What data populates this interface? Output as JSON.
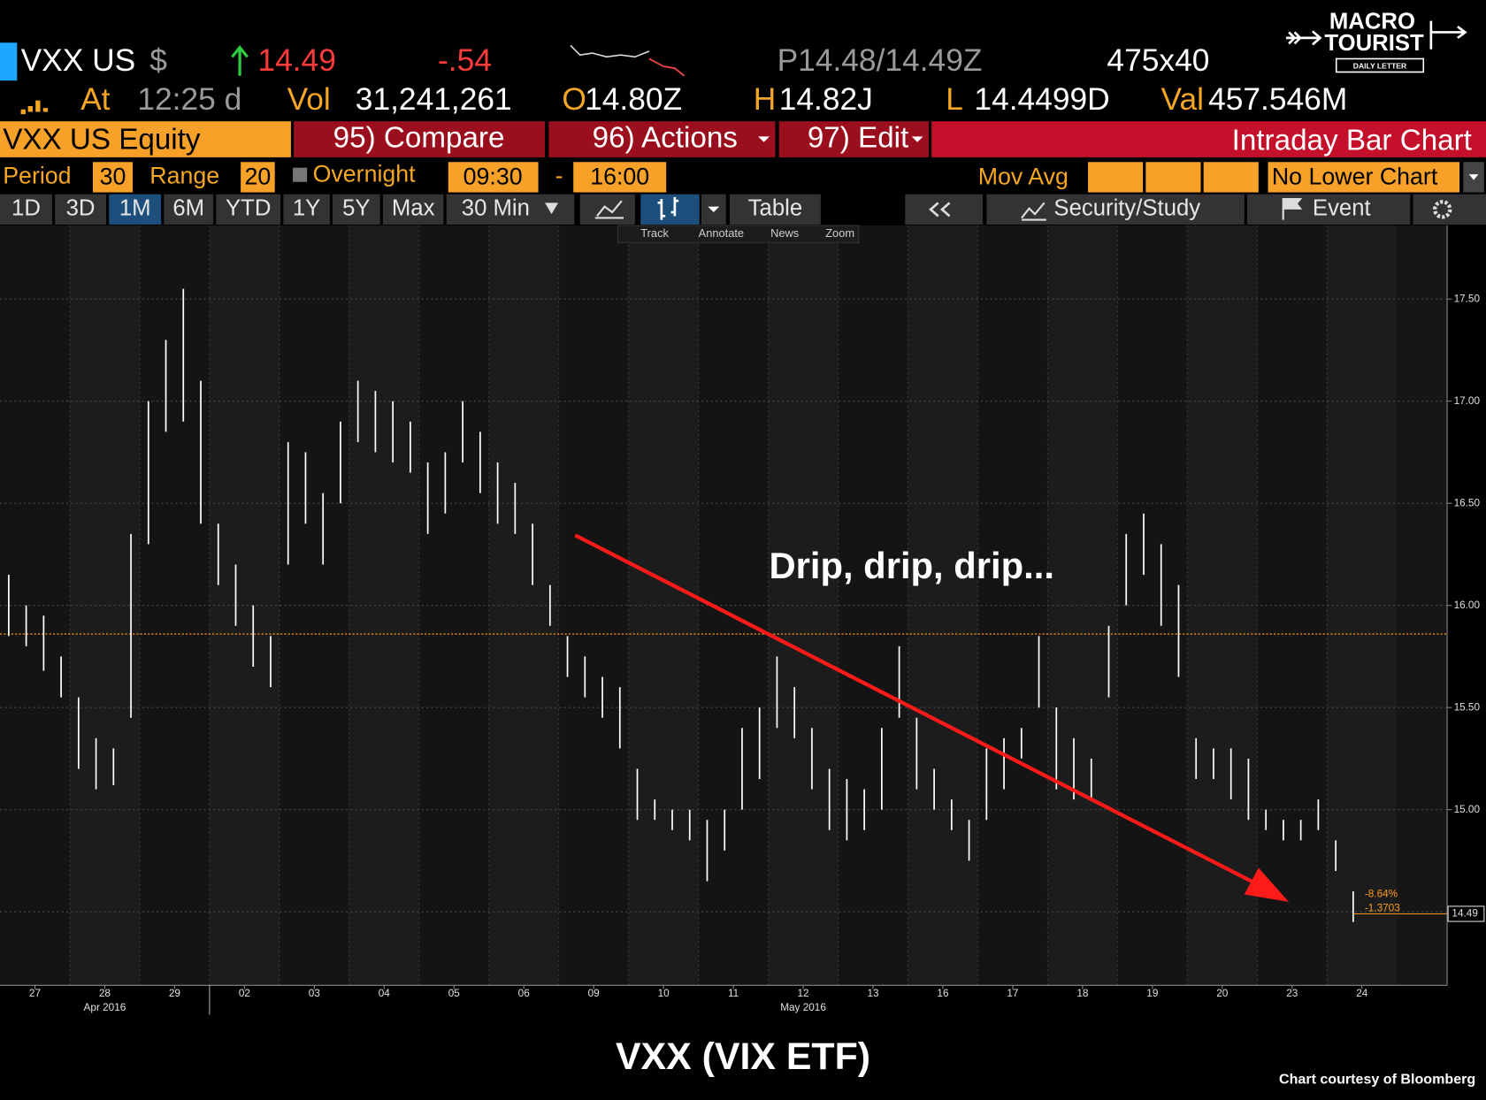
{
  "header": {
    "ticker": "VXX US",
    "currency": "$",
    "last": "14.49",
    "change": "-.54",
    "bid_ask": "P14.48/14.49Z",
    "size": "475x40",
    "at_label": "At",
    "time": "12:25 d",
    "vol_label": "Vol",
    "volume": "31,241,261",
    "open_label": "O",
    "open": "14.80Z",
    "high_label": "H",
    "high": "14.82J",
    "low_label": "L",
    "low": "14.4499D",
    "val_label": "Val",
    "value": "457.546M"
  },
  "logo": {
    "line1": "MACRO",
    "line2": "TOURIST",
    "line3": "DAILY LETTER"
  },
  "menu": {
    "security": "VXX US Equity",
    "compare": "95) Compare",
    "actions": "96) Actions",
    "edit": "97) Edit",
    "view": "Intraday Bar Chart"
  },
  "settings": {
    "period_label": "Period",
    "period": 30,
    "range_label": "Range",
    "range": 20,
    "overnight": "Overnight",
    "start": "09:30",
    "separator": "-",
    "end": "16:00",
    "mov_avg": "Mov Avg",
    "lower_chart": "No Lower Chart"
  },
  "tabs": {
    "items": [
      "1D",
      "3D",
      "1M",
      "6M",
      "YTD",
      "1Y",
      "5Y",
      "Max",
      "30 Min"
    ],
    "active": "1M",
    "table": "Table",
    "study": "Security/Study",
    "event": "Event"
  },
  "tools": [
    "Track",
    "Annotate",
    "News",
    "Zoom"
  ],
  "chart_data": {
    "type": "hilo",
    "x": [
      0.125,
      0.375,
      0.625,
      0.875,
      1.125,
      1.375,
      1.625,
      1.875,
      2.125,
      2.375,
      2.625,
      2.875,
      3.125,
      3.375,
      3.625,
      3.875,
      4.125,
      4.375,
      4.625,
      4.875,
      5.125,
      5.375,
      5.625,
      5.875,
      6.125,
      6.375,
      6.625,
      6.875,
      7.125,
      7.375,
      7.625,
      7.875,
      8.125,
      8.375,
      8.625,
      8.875,
      9.125,
      9.375,
      9.625,
      9.875,
      10.125,
      10.375,
      10.625,
      10.875,
      11.125,
      11.375,
      11.625,
      11.875,
      12.125,
      12.375,
      12.625,
      12.875,
      13.125,
      13.375,
      13.625,
      13.875,
      14.125,
      14.375,
      14.625,
      14.875,
      15.125,
      15.375,
      15.625,
      15.875,
      16.125,
      16.375,
      16.625,
      16.875,
      17.125,
      17.375,
      17.625,
      17.875,
      18.125,
      18.375,
      18.625,
      18.875,
      19.125,
      19.375
    ],
    "low": [
      15.85,
      15.8,
      15.68,
      15.55,
      15.2,
      15.1,
      15.12,
      15.45,
      16.3,
      16.85,
      16.9,
      16.4,
      16.1,
      15.9,
      15.7,
      15.6,
      16.2,
      16.4,
      16.2,
      16.5,
      16.8,
      16.75,
      16.7,
      16.65,
      16.35,
      16.45,
      16.7,
      16.55,
      16.4,
      16.35,
      16.1,
      15.9,
      15.65,
      15.55,
      15.45,
      15.3,
      14.95,
      14.95,
      14.9,
      14.85,
      14.65,
      14.8,
      15.0,
      15.15,
      15.4,
      15.35,
      15.1,
      14.9,
      14.85,
      14.9,
      15.0,
      15.45,
      15.1,
      15.0,
      14.9,
      14.75,
      14.95,
      15.1,
      15.25,
      15.5,
      15.1,
      15.05,
      15.05,
      15.55,
      16.0,
      16.15,
      15.9,
      15.65,
      15.15,
      15.15,
      15.05,
      14.95,
      14.9,
      14.85,
      14.85,
      14.9,
      14.7,
      14.45
    ],
    "high": [
      16.15,
      16.0,
      15.95,
      15.75,
      15.55,
      15.35,
      15.3,
      16.35,
      17.0,
      17.3,
      17.55,
      17.1,
      16.4,
      16.2,
      16.0,
      15.85,
      16.8,
      16.75,
      16.55,
      16.9,
      17.1,
      17.05,
      17.0,
      16.9,
      16.7,
      16.75,
      17.0,
      16.85,
      16.7,
      16.6,
      16.4,
      16.1,
      15.85,
      15.75,
      15.65,
      15.6,
      15.2,
      15.05,
      15.0,
      15.0,
      14.95,
      15.0,
      15.4,
      15.5,
      15.75,
      15.6,
      15.4,
      15.2,
      15.15,
      15.1,
      15.4,
      15.8,
      15.45,
      15.2,
      15.05,
      14.95,
      15.3,
      15.35,
      15.4,
      15.85,
      15.5,
      15.35,
      15.25,
      15.9,
      16.35,
      16.45,
      16.3,
      16.1,
      15.35,
      15.3,
      15.3,
      15.25,
      15.0,
      14.95,
      14.95,
      15.05,
      14.85,
      14.6
    ],
    "color": "#ffffff",
    "xlim": [
      0,
      20.72
    ],
    "ylim": [
      14.14,
      17.86
    ],
    "xticks": [
      {
        "value": 0.5,
        "label": "27"
      },
      {
        "value": 1.5,
        "label": "28"
      },
      {
        "value": 2.5,
        "label": "29"
      },
      {
        "value": 3.5,
        "label": "02"
      },
      {
        "value": 4.5,
        "label": "03"
      },
      {
        "value": 5.5,
        "label": "04"
      },
      {
        "value": 6.5,
        "label": "05"
      },
      {
        "value": 7.5,
        "label": "06"
      },
      {
        "value": 8.5,
        "label": "09"
      },
      {
        "value": 9.5,
        "label": "10"
      },
      {
        "value": 10.5,
        "label": "11"
      },
      {
        "value": 11.5,
        "label": "12"
      },
      {
        "value": 12.5,
        "label": "13"
      },
      {
        "value": 13.5,
        "label": "16"
      },
      {
        "value": 14.5,
        "label": "17"
      },
      {
        "value": 15.5,
        "label": "18"
      },
      {
        "value": 16.5,
        "label": "19"
      },
      {
        "value": 17.5,
        "label": "20"
      },
      {
        "value": 18.5,
        "label": "23"
      },
      {
        "value": 19.5,
        "label": "24"
      }
    ],
    "xticks_months": [
      {
        "value": 1.5,
        "label": "Apr 2016"
      },
      {
        "value": 11.5,
        "label": "May 2016"
      }
    ],
    "yticks": [
      {
        "value": 14.5,
        "label": "14.50"
      },
      {
        "value": 15,
        "label": "15.00"
      },
      {
        "value": 15.5,
        "label": "15.50"
      },
      {
        "value": 16,
        "label": "16.00"
      },
      {
        "value": 16.5,
        "label": "16.50"
      },
      {
        "value": 17,
        "label": "17.00"
      },
      {
        "value": 17.5,
        "label": "17.50"
      }
    ],
    "grid": true,
    "reference_line": 15.86,
    "reference_color": "#ff9a1f",
    "last_price": 14.49,
    "change_pct": "-8.64%",
    "change_abs": -1.3703,
    "annotation": "Drip, drip, drip..."
  },
  "caption": "VXX (VIX ETF)",
  "credit": "Chart courtesy of Bloomberg"
}
